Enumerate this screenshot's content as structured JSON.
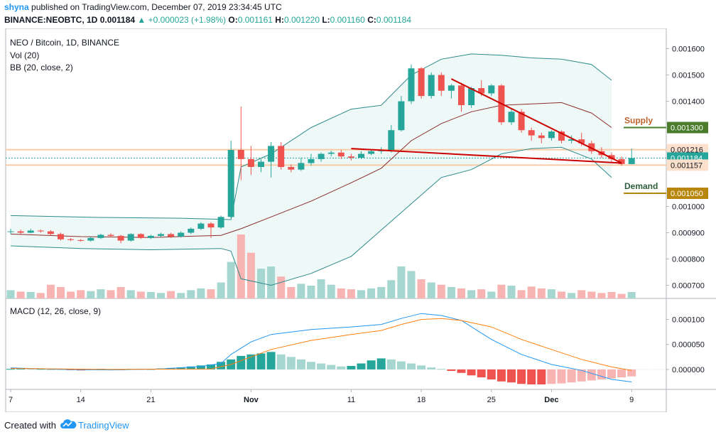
{
  "header": {
    "author": "shyna",
    "published_text": "published on TradingView.com, December 07, 2019 23:34:45 UTC",
    "symbol": "BINANCE:NEOBTC, 1D",
    "price": "0.001184",
    "change": "▲ +0.000023 (+1.98%)",
    "o_label": "O:",
    "o_value": "0.001161",
    "h_label": "H:",
    "h_value": "0.001220",
    "l_label": "L:",
    "l_value": "0.001160",
    "c_label": "C:",
    "c_value": "0.001184"
  },
  "legends": {
    "title": "NEO / Bitcoin, 1D, BINANCE",
    "vol": "Vol (20)",
    "bb": "BB (20, close, 2)",
    "macd": "MACD (12, 26, close, 9)"
  },
  "annotations": {
    "supply": "Supply",
    "demand": "Demand"
  },
  "footer": {
    "created_with": "Created with",
    "brand": "TradingView"
  },
  "colors": {
    "bull": "#26a69a",
    "bear": "#ef5350",
    "bull_vol": "#a5d6d0",
    "bear_vol": "#f7b4b3",
    "bb_band": "#2e8b8b",
    "bb_basis": "#8b2e2e",
    "macd_line": "#2196f3",
    "signal_line": "#ff7f0e",
    "supply": "#4a7c2c",
    "demand": "#b8860b",
    "trend": "#cc0000"
  },
  "chart_data": {
    "type": "candlestick",
    "price_axis": {
      "ticks": [
        "0.001600",
        "0.001500",
        "0.001400",
        "0.001300",
        "0.001216",
        "0.001184",
        "0.001157",
        "0.001050",
        "0.001000",
        "0.000900",
        "0.000800",
        "0.000700"
      ],
      "range": [
        0.00065,
        0.00165
      ]
    },
    "macd_axis": {
      "ticks": [
        "0.000100",
        "0.000050",
        "0.000000"
      ],
      "range": [
        -4e-05,
        0.000135
      ]
    },
    "x_axis": {
      "labels": [
        {
          "label": "7",
          "index": 0
        },
        {
          "label": "14",
          "index": 7
        },
        {
          "label": "21",
          "index": 14
        },
        {
          "label": "Nov",
          "index": 24
        },
        {
          "label": "11",
          "index": 34
        },
        {
          "label": "18",
          "index": 41
        },
        {
          "label": "25",
          "index": 48
        },
        {
          "label": "Dec",
          "index": 54
        },
        {
          "label": "9",
          "index": 62
        }
      ]
    },
    "price_lines": [
      {
        "name": "supply",
        "value": 0.0013,
        "label": "0.001300"
      },
      {
        "name": "demand",
        "value": 0.00105,
        "label": "0.001050"
      },
      {
        "name": "high",
        "value": 0.001216,
        "label": "0.001216"
      },
      {
        "name": "low",
        "value": 0.001157,
        "label": "0.001157"
      },
      {
        "name": "last",
        "value": 0.001184,
        "label": "0.001184"
      }
    ],
    "trendlines": [
      {
        "from": [
          34,
          0.00122
        ],
        "to": [
          61,
          0.001165
        ]
      },
      {
        "from": [
          44,
          0.001485
        ],
        "to": [
          61,
          0.001165
        ]
      }
    ],
    "candles": [
      [
        0.000905,
        0.000905,
        0.000915,
        0.000895,
        18
      ],
      [
        0.000905,
        0.0009,
        0.000912,
        0.000895,
        15
      ],
      [
        0.0009,
        0.000908,
        0.000915,
        0.000898,
        14
      ],
      [
        0.000908,
        0.000905,
        0.000912,
        0.0009,
        12
      ],
      [
        0.000905,
        0.000895,
        0.00091,
        0.00089,
        30
      ],
      [
        0.000895,
        0.000875,
        0.0009,
        0.00087,
        25
      ],
      [
        0.000875,
        0.000872,
        0.00088,
        0.000868,
        15
      ],
      [
        0.000872,
        0.00087,
        0.000876,
        0.000866,
        18
      ],
      [
        0.00087,
        0.00088,
        0.000885,
        0.000866,
        16
      ],
      [
        0.00088,
        0.000892,
        0.000896,
        0.000876,
        20
      ],
      [
        0.000892,
        0.000888,
        0.000898,
        0.000882,
        18
      ],
      [
        0.000888,
        0.00087,
        0.000892,
        0.00086,
        25
      ],
      [
        0.00087,
        0.000895,
        0.000898,
        0.000866,
        18
      ],
      [
        0.000895,
        0.00088,
        0.000898,
        0.000876,
        15
      ],
      [
        0.00088,
        0.000888,
        0.000892,
        0.000876,
        14
      ],
      [
        0.000888,
        0.000895,
        0.0009,
        0.000884,
        12
      ],
      [
        0.000895,
        0.000885,
        0.0009,
        0.00088,
        16
      ],
      [
        0.000885,
        0.0009,
        0.000905,
        0.000882,
        12
      ],
      [
        0.0009,
        0.000915,
        0.00092,
        0.000895,
        18
      ],
      [
        0.000915,
        0.000935,
        0.00094,
        0.00091,
        22
      ],
      [
        0.000935,
        0.00092,
        0.00094,
        0.00088,
        20
      ],
      [
        0.00092,
        0.00096,
        0.000965,
        0.000915,
        35
      ],
      [
        0.00096,
        0.001215,
        0.00125,
        0.000955,
        80
      ],
      [
        0.001215,
        0.00118,
        0.00138,
        0.0011,
        140
      ],
      [
        0.00118,
        0.00115,
        0.00123,
        0.00112,
        100
      ],
      [
        0.00115,
        0.00117,
        0.00118,
        0.00113,
        65
      ],
      [
        0.00117,
        0.00123,
        0.001245,
        0.00111,
        70
      ],
      [
        0.00123,
        0.00115,
        0.001245,
        0.00114,
        48
      ],
      [
        0.00115,
        0.00114,
        0.00116,
        0.00113,
        25
      ],
      [
        0.00114,
        0.001165,
        0.001185,
        0.001135,
        32
      ],
      [
        0.001165,
        0.00118,
        0.0012,
        0.001155,
        28
      ],
      [
        0.00118,
        0.0012,
        0.001205,
        0.00117,
        42
      ],
      [
        0.0012,
        0.001205,
        0.001212,
        0.00119,
        30
      ],
      [
        0.001205,
        0.00119,
        0.001215,
        0.00118,
        22
      ],
      [
        0.00119,
        0.001185,
        0.0012,
        0.001175,
        20
      ],
      [
        0.001185,
        0.0012,
        0.00121,
        0.00118,
        18
      ],
      [
        0.0012,
        0.00121,
        0.001215,
        0.001195,
        22
      ],
      [
        0.00121,
        0.001215,
        0.001225,
        0.0012,
        25
      ],
      [
        0.001215,
        0.00129,
        0.00131,
        0.001205,
        40
      ],
      [
        0.00129,
        0.0014,
        0.00142,
        0.001285,
        70
      ],
      [
        0.0014,
        0.001525,
        0.00154,
        0.00139,
        60
      ],
      [
        0.001525,
        0.00142,
        0.00153,
        0.00141,
        42
      ],
      [
        0.00142,
        0.0015,
        0.00151,
        0.00141,
        35
      ],
      [
        0.0015,
        0.00144,
        0.00151,
        0.00142,
        30
      ],
      [
        0.00144,
        0.00146,
        0.001465,
        0.00141,
        25
      ],
      [
        0.00146,
        0.001385,
        0.00147,
        0.00136,
        22
      ],
      [
        0.001385,
        0.00145,
        0.001455,
        0.001375,
        18
      ],
      [
        0.00145,
        0.00143,
        0.00148,
        0.00142,
        20
      ],
      [
        0.00143,
        0.00146,
        0.001465,
        0.00142,
        15
      ],
      [
        0.00146,
        0.00132,
        0.001465,
        0.00131,
        30
      ],
      [
        0.00132,
        0.00136,
        0.00137,
        0.00131,
        28
      ],
      [
        0.00136,
        0.00129,
        0.00137,
        0.00128,
        18
      ],
      [
        0.00129,
        0.00127,
        0.0013,
        0.00125,
        26
      ],
      [
        0.00127,
        0.00126,
        0.00128,
        0.00124,
        22
      ],
      [
        0.00126,
        0.001285,
        0.00129,
        0.00125,
        20
      ],
      [
        0.001285,
        0.00125,
        0.00129,
        0.00124,
        15
      ],
      [
        0.00125,
        0.001255,
        0.00127,
        0.00124,
        12
      ],
      [
        0.001255,
        0.00124,
        0.00128,
        0.00123,
        18
      ],
      [
        0.00124,
        0.00121,
        0.00125,
        0.0012,
        15
      ],
      [
        0.00121,
        0.001195,
        0.001225,
        0.001185,
        12
      ],
      [
        0.001195,
        0.00118,
        0.001205,
        0.00117,
        14
      ],
      [
        0.00118,
        0.001161,
        0.00119,
        0.001155,
        10
      ],
      [
        0.001161,
        0.001184,
        0.00122,
        0.00116,
        14
      ]
    ],
    "bb_upper": [
      [
        0,
        0.000965
      ],
      [
        9,
        0.000958
      ],
      [
        17,
        0.000955
      ],
      [
        22,
        0.00095
      ],
      [
        23,
        0.00115
      ],
      [
        26,
        0.0012
      ],
      [
        30,
        0.0013
      ],
      [
        34,
        0.00137
      ],
      [
        37,
        0.001385
      ],
      [
        40,
        0.0015
      ],
      [
        43,
        0.00156
      ],
      [
        46,
        0.00158
      ],
      [
        49,
        0.001575
      ],
      [
        52,
        0.001565
      ],
      [
        55,
        0.00156
      ],
      [
        58,
        0.00154
      ],
      [
        60,
        0.00148
      ]
    ],
    "bb_basis": [
      [
        0,
        0.000895
      ],
      [
        7,
        0.000885
      ],
      [
        14,
        0.000882
      ],
      [
        21,
        0.00089
      ],
      [
        23,
        0.000915
      ],
      [
        26,
        0.00096
      ],
      [
        30,
        0.00102
      ],
      [
        34,
        0.00109
      ],
      [
        37,
        0.001145
      ],
      [
        40,
        0.00125
      ],
      [
        43,
        0.001315
      ],
      [
        46,
        0.00136
      ],
      [
        49,
        0.001385
      ],
      [
        52,
        0.00139
      ],
      [
        55,
        0.001395
      ],
      [
        58,
        0.001355
      ],
      [
        60,
        0.0013
      ]
    ],
    "bb_lower": [
      [
        0,
        0.00085
      ],
      [
        7,
        0.00084
      ],
      [
        14,
        0.000835
      ],
      [
        21,
        0.00084
      ],
      [
        22,
        0.00083
      ],
      [
        23,
        0.000725
      ],
      [
        26,
        0.0007
      ],
      [
        30,
        0.000745
      ],
      [
        34,
        0.00081
      ],
      [
        37,
        0.00091
      ],
      [
        40,
        0.00101
      ],
      [
        43,
        0.00111
      ],
      [
        46,
        0.00114
      ],
      [
        49,
        0.0012
      ],
      [
        52,
        0.00122
      ],
      [
        55,
        0.001225
      ],
      [
        58,
        0.00118
      ],
      [
        60,
        0.00111
      ]
    ],
    "macd_line": [
      [
        0,
        3e-06
      ],
      [
        5,
        0.0
      ],
      [
        10,
        -1e-06
      ],
      [
        15,
        1e-06
      ],
      [
        19,
        6e-06
      ],
      [
        21,
        1.2e-05
      ],
      [
        22,
        3e-05
      ],
      [
        24,
        5.5e-05
      ],
      [
        26,
        7e-05
      ],
      [
        30,
        8e-05
      ],
      [
        34,
        8.5e-05
      ],
      [
        37,
        9e-05
      ],
      [
        39,
        0.000102
      ],
      [
        41,
        0.000112
      ],
      [
        43,
        0.000108
      ],
      [
        45,
        9.8e-05
      ],
      [
        48,
        6e-05
      ],
      [
        51,
        3e-05
      ],
      [
        54,
        1e-05
      ],
      [
        57,
        -2e-06
      ],
      [
        60,
        -2e-05
      ],
      [
        62,
        -2.5e-05
      ]
    ],
    "signal_line": [
      [
        0,
        2e-06
      ],
      [
        10,
        0.0
      ],
      [
        20,
        1e-06
      ],
      [
        22,
        1e-05
      ],
      [
        24,
        2.5e-05
      ],
      [
        26,
        4e-05
      ],
      [
        30,
        5.8e-05
      ],
      [
        34,
        7e-05
      ],
      [
        37,
        7.8e-05
      ],
      [
        39,
        9e-05
      ],
      [
        41,
        0.0001
      ],
      [
        43,
        0.000102
      ],
      [
        45,
        9.8e-05
      ],
      [
        48,
        8.5e-05
      ],
      [
        51,
        6e-05
      ],
      [
        54,
        4e-05
      ],
      [
        57,
        2e-05
      ],
      [
        60,
        5e-06
      ],
      [
        62,
        -2e-06
      ]
    ],
    "macd_hist": [
      1e-06,
      2e-06,
      1e-06,
      1e-06,
      0.0,
      1e-06,
      -1e-06,
      -2e-06,
      -1e-06,
      1e-06,
      0.0,
      -1e-06,
      1e-06,
      1e-06,
      0.0,
      2e-06,
      3e-06,
      4e-06,
      6e-06,
      8e-06,
      1e-05,
      1.5e-05,
      2e-05,
      2.7e-05,
      3e-05,
      3.2e-05,
      3.5e-05,
      3e-05,
      2.5e-05,
      2e-05,
      1.5e-05,
      1.2e-05,
      9e-06,
      6e-06,
      7e-06,
      1.2e-05,
      1.8e-05,
      2.2e-05,
      2e-05,
      1.6e-05,
      1.2e-05,
      8e-06,
      4e-06,
      1e-06,
      -3e-06,
      -7e-06,
      -1.2e-05,
      -1.6e-05,
      -2e-05,
      -2.4e-05,
      -2.6e-05,
      -2.9e-05,
      -3e-05,
      -3e-05,
      -2.9e-05,
      -2.8e-05,
      -2.6e-05,
      -2.4e-05,
      -2.2e-05,
      -2e-05,
      -1.8e-05,
      -1.6e-05,
      -1.4e-05
    ]
  }
}
